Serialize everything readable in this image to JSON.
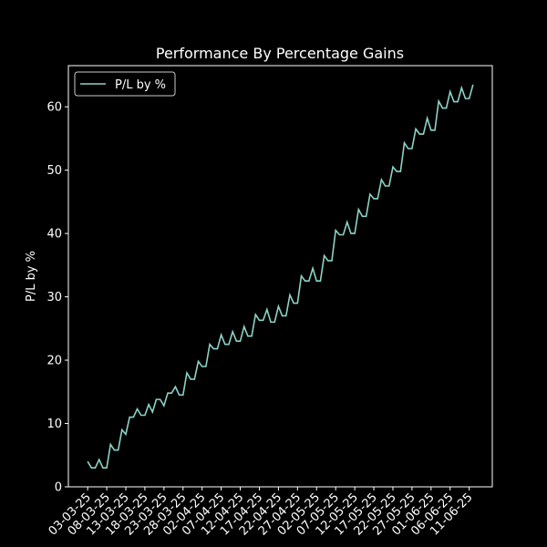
{
  "chart_data": {
    "type": "line",
    "title": "Performance By Percentage Gains",
    "y_label": "P/L by %",
    "categories": [
      "03-03-25",
      null,
      null,
      null,
      null,
      "08-03-25",
      null,
      null,
      null,
      null,
      "13-03-25",
      null,
      null,
      null,
      null,
      "18-03-25",
      null,
      null,
      null,
      null,
      "23-03-25",
      null,
      null,
      null,
      null,
      "28-03-25",
      null,
      null,
      null,
      null,
      "02-04-25",
      null,
      null,
      null,
      null,
      "07-04-25",
      null,
      null,
      null,
      null,
      "12-04-25",
      null,
      null,
      null,
      null,
      "17-04-25",
      null,
      null,
      null,
      null,
      "22-04-25",
      null,
      null,
      null,
      null,
      "27-04-25",
      null,
      null,
      null,
      null,
      "02-05-25",
      null,
      null,
      null,
      null,
      "07-05-25",
      null,
      null,
      null,
      null,
      "12-05-25",
      null,
      null,
      null,
      null,
      "17-05-25",
      null,
      null,
      null,
      null,
      "22-05-25",
      null,
      null,
      null,
      null,
      "27-05-25",
      null,
      null,
      null,
      null,
      "01-06-25",
      null,
      null,
      null,
      null,
      "06-06-25",
      null,
      null,
      null,
      null,
      "11-06-25",
      null
    ],
    "series": [
      {
        "name": "P/L by %",
        "color": "#8dd3c7",
        "values": [
          4.0,
          3.0,
          3.0,
          4.3,
          3.0,
          3.0,
          6.7,
          5.8,
          5.8,
          9.0,
          8.3,
          11.0,
          11.0,
          12.3,
          11.3,
          11.3,
          13.0,
          11.8,
          13.8,
          13.8,
          12.8,
          14.8,
          14.8,
          15.8,
          14.5,
          14.5,
          18.0,
          17.0,
          17.0,
          19.8,
          19.0,
          19.0,
          22.5,
          21.8,
          21.8,
          24.0,
          22.5,
          22.5,
          24.5,
          23.0,
          23.0,
          25.3,
          23.8,
          23.8,
          27.2,
          26.3,
          26.3,
          28.0,
          26.0,
          26.0,
          28.5,
          27.0,
          27.0,
          30.3,
          29.0,
          29.0,
          33.3,
          32.5,
          32.5,
          34.5,
          32.5,
          32.5,
          36.5,
          35.7,
          35.7,
          40.5,
          39.8,
          39.8,
          41.8,
          40.0,
          40.0,
          43.8,
          42.7,
          42.7,
          46.2,
          45.5,
          45.5,
          48.5,
          47.5,
          47.5,
          50.5,
          49.8,
          49.8,
          54.3,
          53.4,
          53.4,
          56.5,
          55.7,
          55.7,
          58.2,
          56.3,
          56.3,
          60.9,
          59.8,
          59.8,
          62.4,
          60.8,
          60.8,
          63.0,
          61.3,
          61.3,
          63.5
        ]
      }
    ],
    "ylim": [
      0,
      66.5
    ],
    "yticks": [
      0,
      10,
      20,
      30,
      40,
      50,
      60
    ],
    "legend": "upper left"
  }
}
